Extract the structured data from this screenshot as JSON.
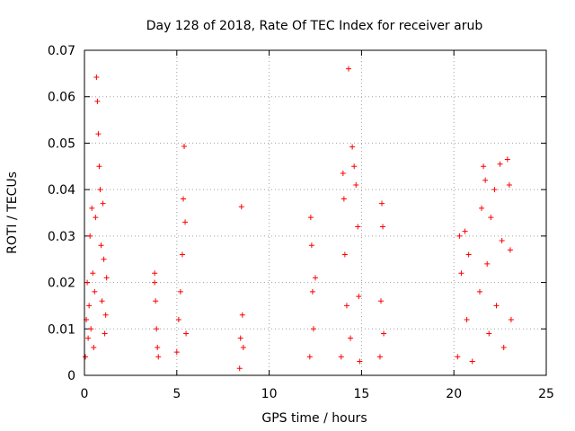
{
  "chart_data": {
    "type": "scatter",
    "title": "Day 128 of 2018, Rate Of TEC Index for receiver arub",
    "xlabel": "GPS time / hours",
    "ylabel": "ROTI / TECUs",
    "xlim": [
      0,
      25
    ],
    "ylim": [
      0,
      0.07
    ],
    "xticks": [
      "0",
      "5",
      "10",
      "15",
      "20",
      "25"
    ],
    "yticks": [
      "0",
      "0.01",
      "0.02",
      "0.03",
      "0.04",
      "0.05",
      "0.06",
      "0.07"
    ],
    "grid": true,
    "marker": "+",
    "color": "#ff0000",
    "series": [
      {
        "points": [
          [
            0.05,
            0.004
          ],
          [
            0.1,
            0.012
          ],
          [
            0.15,
            0.02
          ],
          [
            0.2,
            0.008
          ],
          [
            0.25,
            0.015
          ],
          [
            0.3,
            0.03
          ],
          [
            0.35,
            0.01
          ],
          [
            0.4,
            0.036
          ],
          [
            0.45,
            0.022
          ],
          [
            0.5,
            0.006
          ],
          [
            0.55,
            0.018
          ],
          [
            0.6,
            0.034
          ],
          [
            0.65,
            0.0642
          ],
          [
            0.7,
            0.059
          ],
          [
            0.75,
            0.052
          ],
          [
            0.8,
            0.045
          ],
          [
            0.85,
            0.04
          ],
          [
            0.9,
            0.028
          ],
          [
            0.95,
            0.016
          ],
          [
            1.0,
            0.037
          ],
          [
            1.05,
            0.025
          ],
          [
            1.1,
            0.009
          ],
          [
            1.15,
            0.013
          ],
          [
            1.2,
            0.021
          ],
          [
            3.8,
            0.022
          ],
          [
            3.85,
            0.016
          ],
          [
            3.9,
            0.01
          ],
          [
            3.95,
            0.006
          ],
          [
            4.0,
            0.004
          ],
          [
            3.8,
            0.02
          ],
          [
            5.0,
            0.005
          ],
          [
            5.1,
            0.012
          ],
          [
            5.2,
            0.018
          ],
          [
            5.3,
            0.026
          ],
          [
            5.35,
            0.038
          ],
          [
            5.4,
            0.0493
          ],
          [
            5.45,
            0.033
          ],
          [
            5.5,
            0.009
          ],
          [
            8.4,
            0.0015
          ],
          [
            8.45,
            0.008
          ],
          [
            8.5,
            0.0363
          ],
          [
            8.55,
            0.013
          ],
          [
            8.6,
            0.006
          ],
          [
            12.2,
            0.004
          ],
          [
            12.25,
            0.034
          ],
          [
            12.3,
            0.028
          ],
          [
            12.35,
            0.018
          ],
          [
            12.4,
            0.01
          ],
          [
            12.5,
            0.021
          ],
          [
            13.9,
            0.004
          ],
          [
            14.0,
            0.0435
          ],
          [
            14.05,
            0.038
          ],
          [
            14.1,
            0.026
          ],
          [
            14.2,
            0.015
          ],
          [
            14.3,
            0.066
          ],
          [
            14.4,
            0.008
          ],
          [
            14.5,
            0.0492
          ],
          [
            14.6,
            0.045
          ],
          [
            14.7,
            0.041
          ],
          [
            14.8,
            0.032
          ],
          [
            14.85,
            0.017
          ],
          [
            14.9,
            0.003
          ],
          [
            16.0,
            0.004
          ],
          [
            16.05,
            0.016
          ],
          [
            16.1,
            0.037
          ],
          [
            16.15,
            0.032
          ],
          [
            16.2,
            0.009
          ],
          [
            20.2,
            0.004
          ],
          [
            20.3,
            0.03
          ],
          [
            20.4,
            0.022
          ],
          [
            20.6,
            0.031
          ],
          [
            20.7,
            0.012
          ],
          [
            20.8,
            0.026
          ],
          [
            21.0,
            0.003
          ],
          [
            21.4,
            0.018
          ],
          [
            21.5,
            0.036
          ],
          [
            21.6,
            0.045
          ],
          [
            21.7,
            0.042
          ],
          [
            21.8,
            0.024
          ],
          [
            21.9,
            0.009
          ],
          [
            22.0,
            0.034
          ],
          [
            22.2,
            0.04
          ],
          [
            22.3,
            0.015
          ],
          [
            22.5,
            0.0455
          ],
          [
            22.6,
            0.029
          ],
          [
            22.7,
            0.006
          ],
          [
            22.9,
            0.0465
          ],
          [
            23.0,
            0.041
          ],
          [
            23.05,
            0.027
          ],
          [
            23.1,
            0.012
          ]
        ]
      }
    ]
  }
}
